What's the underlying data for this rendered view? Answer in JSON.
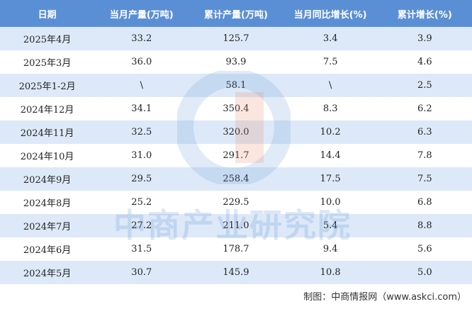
{
  "table": {
    "header": [
      "日期",
      "当月产量(万吨)",
      "累计产量(万吨)",
      "当月同比增长(%)",
      "累计增长(%)"
    ],
    "rows": [
      [
        "2025年4月",
        "33.2",
        "125.7",
        "3.4",
        "3.9"
      ],
      [
        "2025年3月",
        "36.0",
        "93.9",
        "7.5",
        "4.6"
      ],
      [
        "2025年1-2月",
        "\\",
        "58.1",
        "\\",
        "2.5"
      ],
      [
        "2024年12月",
        "34.1",
        "350.4",
        "8.3",
        "6.2"
      ],
      [
        "2024年11月",
        "32.5",
        "320.0",
        "10.2",
        "6.3"
      ],
      [
        "2024年10月",
        "31.0",
        "291.7",
        "14.4",
        "7.8"
      ],
      [
        "2024年9月",
        "29.5",
        "258.4",
        "17.5",
        "7.5"
      ],
      [
        "2024年8月",
        "25.2",
        "229.5",
        "10.0",
        "6.8"
      ],
      [
        "2024年7月",
        "27.2",
        "211.0",
        "5.4",
        "8.8"
      ],
      [
        "2024年6月",
        "31.5",
        "178.7",
        "9.4",
        "5.6"
      ],
      [
        "2024年5月",
        "30.7",
        "145.9",
        "10.8",
        "5.0"
      ]
    ]
  },
  "watermark": "中商产业研究院",
  "footer": "制图：中商情报网（www.askci.com）"
}
